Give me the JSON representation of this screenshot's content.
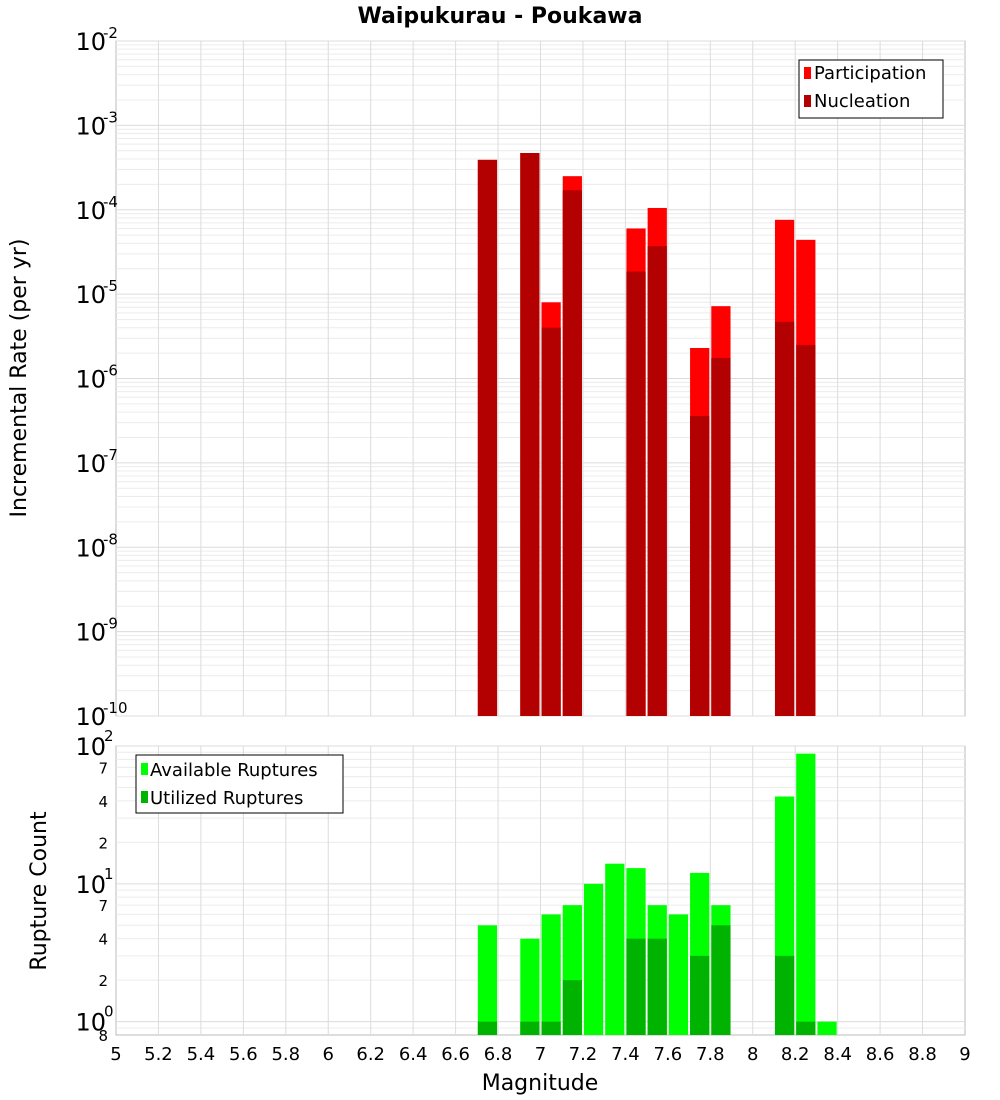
{
  "chart_data": [
    {
      "type": "bar",
      "title": "Waipukurau - Poukawa",
      "ylabel": "Incremental Rate (per yr)",
      "yscale": "log",
      "ylim": [
        1e-10,
        0.01
      ],
      "xlim": [
        5,
        9
      ],
      "legend": {
        "placement": "top-right",
        "entries": [
          "Participation",
          "Nucleation"
        ]
      },
      "colors": {
        "Participation": "#ff0000",
        "Nucleation": "#b30000"
      },
      "y_tick_bases": [
        "10",
        "10",
        "10",
        "10",
        "10",
        "10",
        "10",
        "10",
        "10"
      ],
      "y_tick_exponents": [
        "-10",
        "-9",
        "-8",
        "-7",
        "-6",
        "-5",
        "-4",
        "-3",
        "-2"
      ],
      "x": [
        6.75,
        6.95,
        7.05,
        7.15,
        7.45,
        7.55,
        7.75,
        7.85,
        8.15,
        8.25
      ],
      "series": [
        {
          "name": "Participation",
          "values": [
            0.00039,
            0.00047,
            8e-06,
            0.00025,
            6e-05,
            0.000105,
            2.3e-06,
            7.2e-06,
            7.6e-05,
            4.4e-05
          ]
        },
        {
          "name": "Nucleation",
          "values": [
            0.00039,
            0.00047,
            4e-06,
            0.00017,
            1.85e-05,
            3.7e-05,
            3.6e-07,
            1.75e-06,
            4.7e-06,
            2.5e-06
          ]
        }
      ]
    },
    {
      "type": "bar",
      "xlabel": "Magnitude",
      "ylabel": "Rupture Count",
      "yscale": "log",
      "ylim": [
        0.8,
        100
      ],
      "xlim": [
        5,
        9
      ],
      "legend": {
        "placement": "top-left",
        "entries": [
          "Available Ruptures",
          "Utilized Ruptures"
        ]
      },
      "colors": {
        "Available Ruptures": "#00ff00",
        "Utilized Ruptures": "#00b300"
      },
      "x_ticks": [
        "5",
        "5.2",
        "5.4",
        "5.6",
        "5.8",
        "6",
        "6.2",
        "6.4",
        "6.6",
        "6.8",
        "7",
        "7.2",
        "7.4",
        "7.6",
        "7.8",
        "8",
        "8.2",
        "8.4",
        "8.6",
        "8.8",
        "9"
      ],
      "y_tick_bases": [
        "10",
        "10",
        "10"
      ],
      "y_tick_exponents": [
        "0",
        "1",
        "2"
      ],
      "y_minor_labels": [
        "8",
        "2",
        "4",
        "7",
        "2",
        "4",
        "7"
      ],
      "y_minor_values": [
        0.8,
        2,
        4,
        7,
        20,
        40,
        70
      ],
      "x": [
        6.75,
        6.95,
        7.05,
        7.15,
        7.25,
        7.35,
        7.45,
        7.55,
        7.65,
        7.75,
        7.85,
        8.15,
        8.25,
        8.35
      ],
      "series": [
        {
          "name": "Available Ruptures",
          "values": [
            5,
            4,
            6,
            7,
            10,
            14,
            13,
            7,
            6,
            12,
            7,
            43,
            88,
            1
          ]
        },
        {
          "name": "Utilized Ruptures",
          "values": [
            1,
            1,
            1,
            2,
            0,
            0,
            4,
            4,
            0,
            3,
            5,
            3,
            1,
            0
          ]
        }
      ]
    }
  ]
}
